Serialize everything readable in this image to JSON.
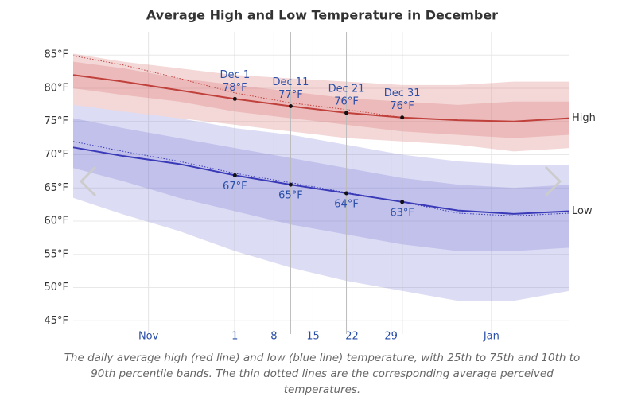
{
  "chart_data": {
    "type": "line",
    "title": "Average High and Low Temperature in December",
    "caption": "The daily average high (red line) and low (blue line) temperature, with 25th to 75th and 10th to 90th percentile bands. The thin dotted lines are the corresponding average perceived temperatures.",
    "x": [
      -29,
      -20,
      -10,
      0,
      10,
      20,
      30,
      40,
      50,
      60
    ],
    "xlim": [
      -29,
      60
    ],
    "xticks": [
      {
        "value": -15.5,
        "label": "Nov"
      },
      {
        "value": 0,
        "label": "1"
      },
      {
        "value": 7,
        "label": "8"
      },
      {
        "value": 14,
        "label": "15"
      },
      {
        "value": 21,
        "label": "22"
      },
      {
        "value": 28,
        "label": "29"
      },
      {
        "value": 46,
        "label": "Jan"
      }
    ],
    "ylim": [
      43,
      88.5
    ],
    "yticks": [
      {
        "value": 45,
        "label": "45°F"
      },
      {
        "value": 50,
        "label": "50°F"
      },
      {
        "value": 55,
        "label": "55°F"
      },
      {
        "value": 60,
        "label": "60°F"
      },
      {
        "value": 65,
        "label": "65°F"
      },
      {
        "value": 70,
        "label": "70°F"
      },
      {
        "value": 75,
        "label": "75°F"
      },
      {
        "value": 80,
        "label": "80°F"
      },
      {
        "value": 85,
        "label": "85°F"
      }
    ],
    "grid": true,
    "series": [
      {
        "name": "High",
        "color": "#c0403c",
        "values": [
          82,
          81,
          79.7,
          78.4,
          77.3,
          76.3,
          75.6,
          75.2,
          75,
          75.5
        ],
        "perceived": [
          84.9,
          83.5,
          81.5,
          79.3,
          77.8,
          76.8,
          75.6,
          75.2,
          75,
          75.5
        ],
        "band_color": "rgba(215,110,110,0.28)",
        "p10": [
          77.5,
          76.5,
          75.5,
          74.5,
          73.5,
          72.5,
          72,
          71.5,
          70.5,
          71
        ],
        "p25": [
          80,
          79,
          78,
          76.5,
          75.5,
          74.5,
          73.5,
          73,
          72.5,
          73
        ],
        "p75": [
          84,
          83,
          81.5,
          80.5,
          79.5,
          78.5,
          78,
          77.5,
          78,
          78
        ],
        "p90": [
          85.2,
          84,
          83,
          82,
          81.5,
          81,
          80.5,
          80.5,
          81,
          81
        ]
      },
      {
        "name": "Low",
        "color": "#3a3ab8",
        "values": [
          71.1,
          69.8,
          68.6,
          66.9,
          65.5,
          64.2,
          62.9,
          61.6,
          61.1,
          61.5
        ],
        "perceived": [
          72,
          70.5,
          69,
          67.2,
          65.8,
          64.3,
          62.9,
          61.2,
          60.8,
          61.2
        ],
        "band_color": "rgba(110,110,210,0.24)",
        "p10": [
          63.5,
          61,
          58.5,
          55.5,
          53,
          51,
          49.5,
          48,
          48,
          49.5
        ],
        "p25": [
          68,
          66,
          63.5,
          61.5,
          59.5,
          58,
          56.5,
          55.5,
          55.5,
          56
        ],
        "p75": [
          75.5,
          74,
          72.5,
          71,
          69.5,
          68,
          66.5,
          65.5,
          65,
          65.5
        ],
        "p90": [
          77.5,
          76.5,
          75.5,
          74,
          73,
          71.5,
          70,
          69,
          68.5,
          68.5
        ]
      }
    ],
    "annotations": [
      {
        "index": 3,
        "label": "Dec 1",
        "high_label": "78°F",
        "low_label": "67°F"
      },
      {
        "index": 4,
        "label": "Dec 11",
        "high_label": "77°F",
        "low_label": "65°F"
      },
      {
        "index": 5,
        "label": "Dec 21",
        "high_label": "76°F",
        "low_label": "64°F"
      },
      {
        "index": 6,
        "label": "Dec 31",
        "high_label": "76°F",
        "low_label": "63°F"
      }
    ]
  }
}
